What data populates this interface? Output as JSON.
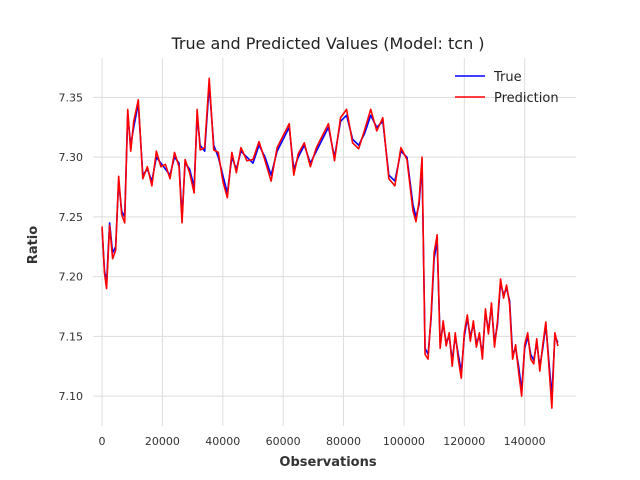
{
  "chart_data": {
    "type": "line",
    "title": "True and Predicted Values (Model: tcn )",
    "xlabel": "Observations",
    "ylabel": "Ratio",
    "xlim": [
      -3000,
      157000
    ],
    "ylim": [
      7.075,
      7.383
    ],
    "xticks": [
      0,
      20000,
      40000,
      60000,
      80000,
      100000,
      120000,
      140000
    ],
    "yticks": [
      7.1,
      7.15,
      7.2,
      7.25,
      7.3,
      7.35
    ],
    "xtick_labels": [
      "0",
      "20000",
      "40000",
      "60000",
      "80000",
      "100000",
      "120000",
      "140000"
    ],
    "ytick_labels": [
      "7.10",
      "7.15",
      "7.20",
      "7.25",
      "7.30",
      "7.35"
    ],
    "grid": true,
    "legend_position": "top-right",
    "series": [
      {
        "name": "True",
        "color": "#0000ff",
        "x": [
          0,
          800,
          1500,
          2500,
          3500,
          4500,
          5500,
          6500,
          7500,
          8500,
          9500,
          10500,
          12000,
          13500,
          15000,
          16500,
          18000,
          19500,
          21000,
          22500,
          24000,
          25500,
          26500,
          27500,
          29000,
          30500,
          31500,
          32500,
          34000,
          35500,
          37000,
          38500,
          40000,
          41500,
          43000,
          44500,
          46000,
          48000,
          50000,
          52000,
          54000,
          56000,
          58000,
          60000,
          62000,
          63500,
          65000,
          67000,
          69000,
          71000,
          73000,
          75000,
          77000,
          79000,
          81000,
          83000,
          85000,
          87000,
          89000,
          91000,
          93000,
          95000,
          97000,
          99000,
          101000,
          103000,
          104000,
          105000,
          106000,
          107000,
          108000,
          109000,
          110000,
          111000,
          112000,
          113000,
          114000,
          115000,
          116000,
          117000,
          118000,
          119000,
          120000,
          121000,
          122000,
          123000,
          124000,
          125000,
          126000,
          127000,
          128000,
          129000,
          130000,
          131000,
          132000,
          133000,
          134000,
          135000,
          136000,
          137000,
          138000,
          139000,
          140000,
          141000,
          142000,
          143000,
          144000,
          145000,
          146000,
          147000,
          148000,
          149000,
          150000,
          151000
        ],
        "values": [
          7.24,
          7.205,
          7.195,
          7.245,
          7.22,
          7.225,
          7.28,
          7.255,
          7.25,
          7.335,
          7.31,
          7.325,
          7.345,
          7.285,
          7.29,
          7.28,
          7.3,
          7.295,
          7.29,
          7.285,
          7.3,
          7.295,
          7.25,
          7.295,
          7.29,
          7.275,
          7.335,
          7.31,
          7.305,
          7.36,
          7.31,
          7.3,
          7.285,
          7.27,
          7.3,
          7.29,
          7.305,
          7.3,
          7.295,
          7.31,
          7.3,
          7.285,
          7.305,
          7.315,
          7.325,
          7.29,
          7.3,
          7.31,
          7.295,
          7.305,
          7.315,
          7.325,
          7.3,
          7.33,
          7.335,
          7.315,
          7.31,
          7.32,
          7.335,
          7.325,
          7.33,
          7.285,
          7.28,
          7.305,
          7.3,
          7.26,
          7.25,
          7.26,
          7.295,
          7.14,
          7.135,
          7.165,
          7.215,
          7.23,
          7.145,
          7.16,
          7.145,
          7.15,
          7.13,
          7.15,
          7.135,
          7.12,
          7.15,
          7.165,
          7.15,
          7.16,
          7.145,
          7.15,
          7.135,
          7.17,
          7.155,
          7.175,
          7.145,
          7.16,
          7.195,
          7.185,
          7.19,
          7.18,
          7.135,
          7.14,
          7.125,
          7.105,
          7.14,
          7.15,
          7.135,
          7.13,
          7.145,
          7.125,
          7.14,
          7.16,
          7.13,
          7.1,
          7.15,
          7.145
        ]
      },
      {
        "name": "Prediction",
        "color": "#ff0000",
        "x": [
          0,
          800,
          1500,
          2500,
          3500,
          4500,
          5500,
          6500,
          7500,
          8500,
          9500,
          10500,
          12000,
          13500,
          15000,
          16500,
          18000,
          19500,
          21000,
          22500,
          24000,
          25500,
          26500,
          27500,
          29000,
          30500,
          31500,
          32500,
          34000,
          35500,
          37000,
          38500,
          40000,
          41500,
          43000,
          44500,
          46000,
          48000,
          50000,
          52000,
          54000,
          56000,
          58000,
          60000,
          62000,
          63500,
          65000,
          67000,
          69000,
          71000,
          73000,
          75000,
          77000,
          79000,
          81000,
          83000,
          85000,
          87000,
          89000,
          91000,
          93000,
          95000,
          97000,
          99000,
          101000,
          103000,
          104000,
          105000,
          106000,
          107000,
          108000,
          109000,
          110000,
          111000,
          112000,
          113000,
          114000,
          115000,
          116000,
          117000,
          118000,
          119000,
          120000,
          121000,
          122000,
          123000,
          124000,
          125000,
          126000,
          127000,
          128000,
          129000,
          130000,
          131000,
          132000,
          133000,
          134000,
          135000,
          136000,
          137000,
          138000,
          139000,
          140000,
          141000,
          142000,
          143000,
          144000,
          145000,
          146000,
          147000,
          148000,
          149000,
          150000,
          151000
        ],
        "values": [
          7.242,
          7.203,
          7.19,
          7.243,
          7.215,
          7.222,
          7.284,
          7.252,
          7.245,
          7.34,
          7.305,
          7.33,
          7.348,
          7.282,
          7.292,
          7.276,
          7.305,
          7.292,
          7.294,
          7.282,
          7.304,
          7.292,
          7.245,
          7.298,
          7.287,
          7.27,
          7.34,
          7.306,
          7.308,
          7.366,
          7.306,
          7.304,
          7.28,
          7.266,
          7.304,
          7.287,
          7.308,
          7.297,
          7.298,
          7.313,
          7.297,
          7.28,
          7.308,
          7.318,
          7.328,
          7.285,
          7.303,
          7.312,
          7.292,
          7.308,
          7.318,
          7.328,
          7.297,
          7.333,
          7.34,
          7.312,
          7.307,
          7.323,
          7.34,
          7.322,
          7.333,
          7.282,
          7.276,
          7.308,
          7.298,
          7.255,
          7.246,
          7.263,
          7.3,
          7.135,
          7.131,
          7.168,
          7.22,
          7.235,
          7.14,
          7.163,
          7.142,
          7.153,
          7.125,
          7.153,
          7.131,
          7.115,
          7.153,
          7.168,
          7.146,
          7.163,
          7.141,
          7.153,
          7.131,
          7.173,
          7.152,
          7.178,
          7.141,
          7.163,
          7.198,
          7.182,
          7.193,
          7.177,
          7.131,
          7.143,
          7.12,
          7.1,
          7.143,
          7.153,
          7.131,
          7.127,
          7.148,
          7.121,
          7.143,
          7.162,
          7.126,
          7.09,
          7.153,
          7.142
        ]
      }
    ]
  }
}
